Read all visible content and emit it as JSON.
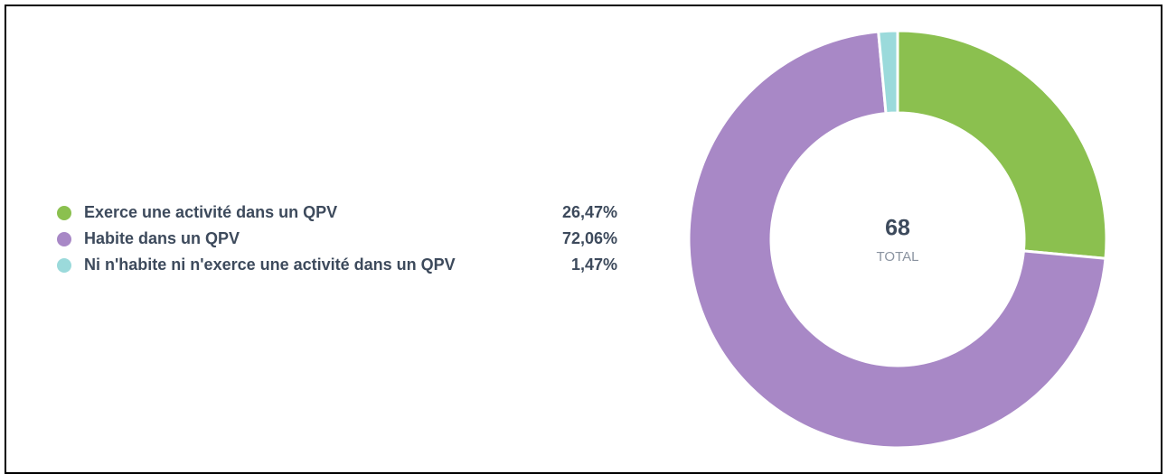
{
  "chart_data": {
    "type": "pie",
    "donut": true,
    "categories": [
      "Exerce une activité dans un QPV",
      "Habite dans un QPV",
      "Ni n'habite ni n'exerce une activité dans un QPV"
    ],
    "values": [
      26.47,
      72.06,
      1.47
    ],
    "value_labels": [
      "26,47%",
      "72,06%",
      "1,47%"
    ],
    "colors": [
      "#8bc04f",
      "#a888c6",
      "#9bdadb"
    ],
    "total": 68,
    "total_label": "TOTAL"
  }
}
